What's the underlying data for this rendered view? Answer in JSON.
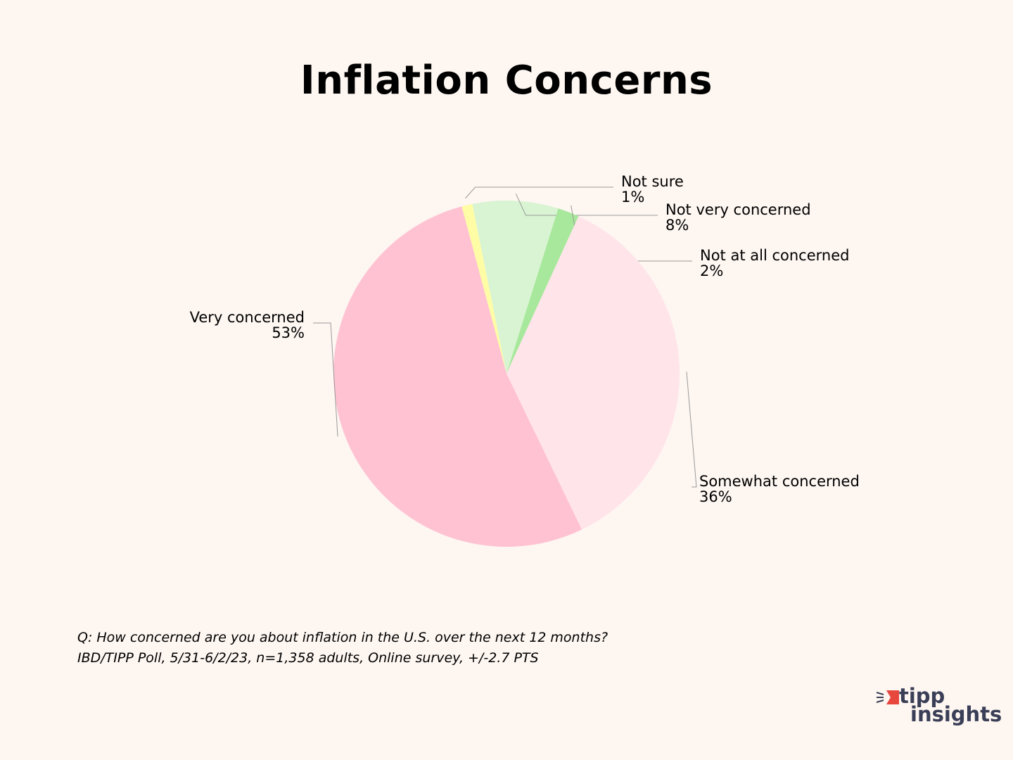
{
  "chart_data": {
    "type": "pie",
    "title": "Inflation Concerns",
    "start_angle_deg": -15,
    "slices": [
      {
        "label": "Not sure",
        "value": 1,
        "display": "1%",
        "color": "#FFFCA6"
      },
      {
        "label": "Not very concerned",
        "value": 8,
        "display": "8%",
        "color": "#D8F4D2"
      },
      {
        "label": "Not at all concerned",
        "value": 2,
        "display": "2%",
        "color": "#A8E89C"
      },
      {
        "label": "Somewhat concerned",
        "value": 36,
        "display": "36%",
        "color": "#FFE4EA"
      },
      {
        "label": "Very concerned",
        "value": 53,
        "display": "53%",
        "color": "#FFC2D2"
      }
    ]
  },
  "footnote": {
    "question": "Q:  How concerned are you about inflation in the U.S. over the next 12 months?",
    "source": "IBD/TIPP Poll, 5/31-6/2/23, n=1,358 adults, Online survey, +/-2.7 PTS"
  },
  "logo": {
    "line1": "tipp",
    "line2": "insights",
    "accent_color": "#E8473D",
    "text_color": "#3A3F57"
  }
}
